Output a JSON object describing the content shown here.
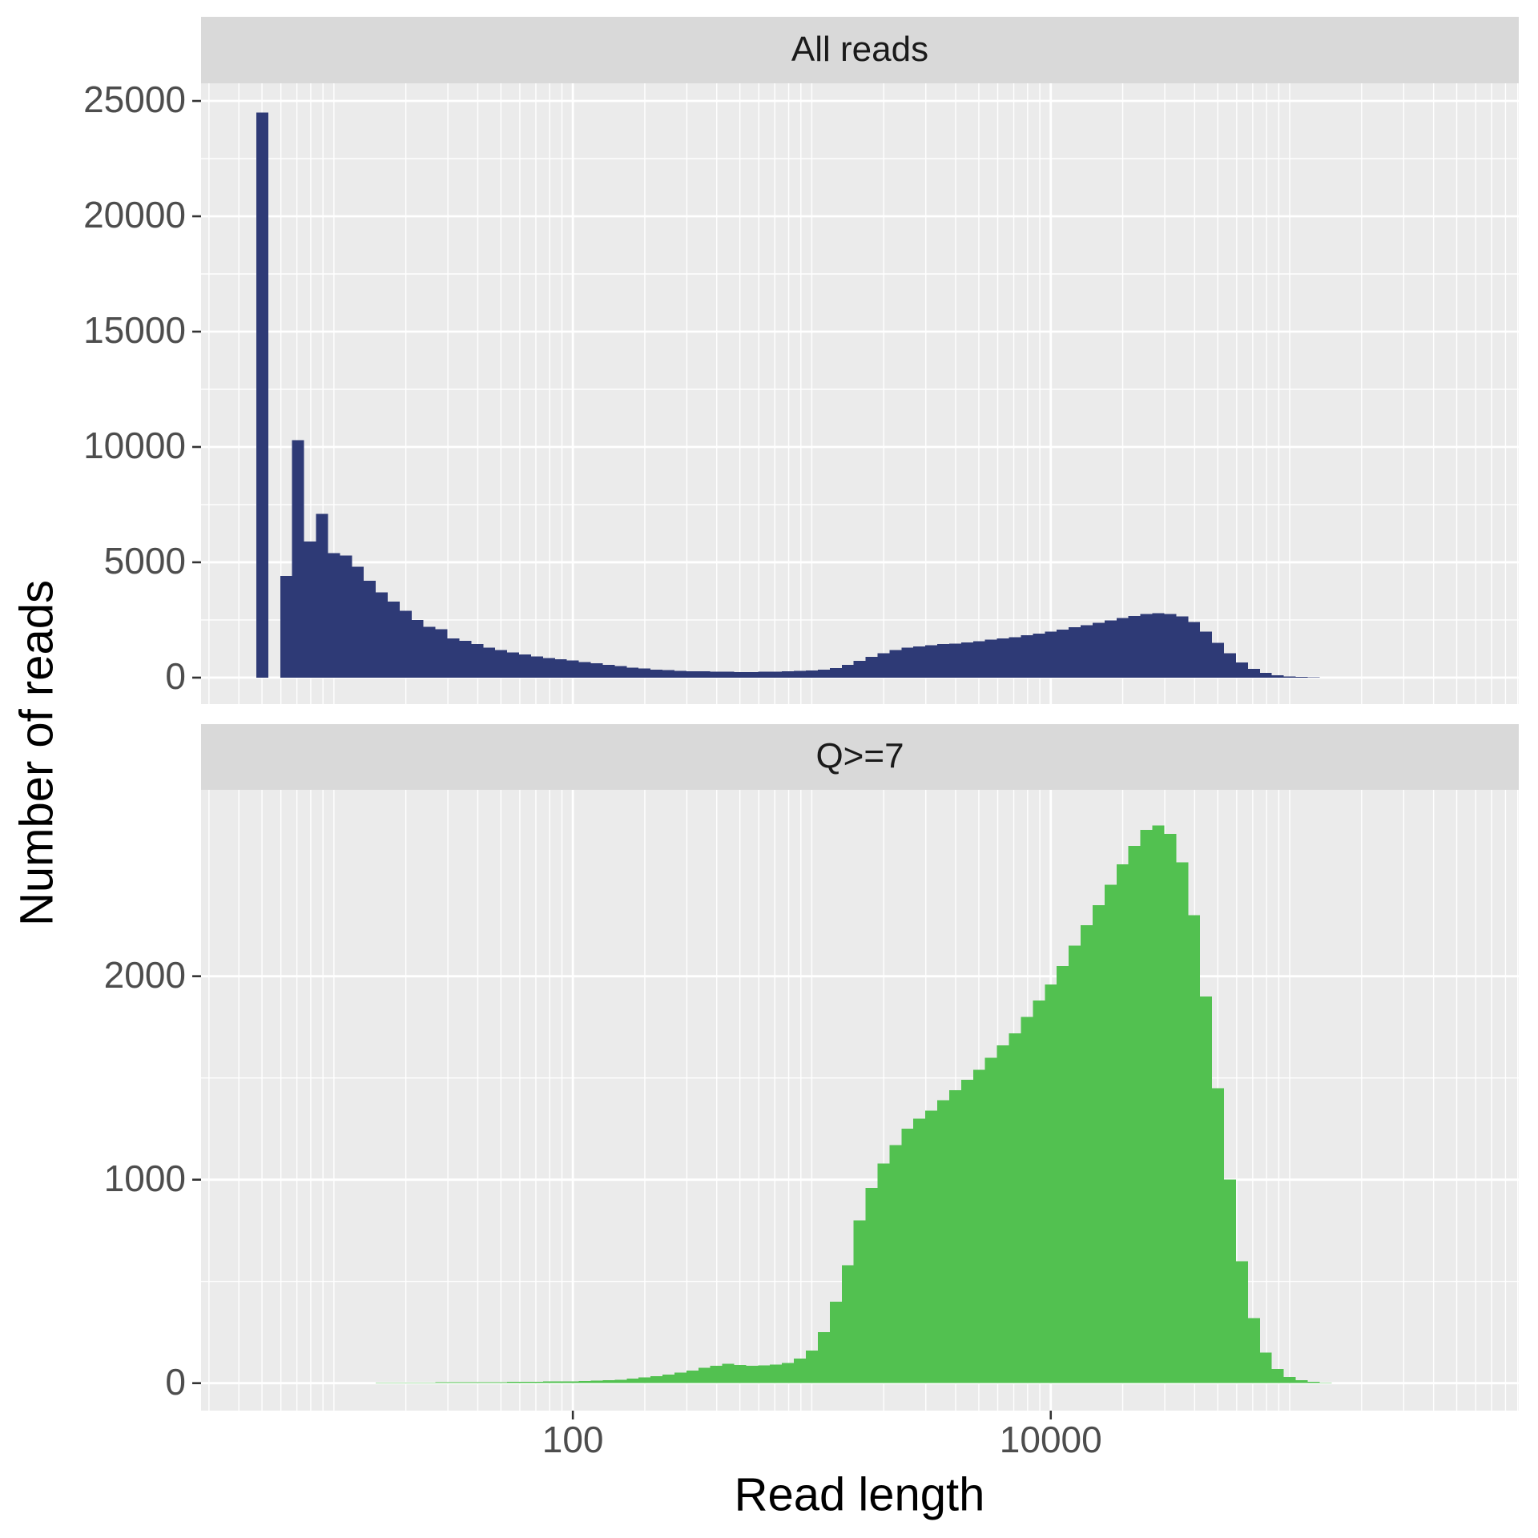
{
  "x_label": "Read length",
  "y_label": "Number of reads",
  "chart_data": [
    {
      "type": "histogram",
      "strip": "All reads",
      "log_x": true,
      "grid": true,
      "color": "#2e3a76",
      "bins": [
        4.73,
        5.31,
        5.96,
        6.68,
        7.5,
        8.41,
        9.44,
        10.59,
        11.89,
        13.34,
        14.96,
        16.79,
        18.84,
        21.13,
        23.71,
        26.61,
        29.85,
        33.5,
        37.58,
        42.17,
        47.32,
        53.09,
        59.57,
        66.83,
        74.99,
        84.14,
        94.41,
        105.9,
        118.9,
        133.4,
        149.6,
        167.9,
        188.4,
        211.3,
        237.1,
        266.1,
        298.5,
        335,
        375.8,
        421.7,
        473.2,
        530.9,
        595.7,
        668.3,
        749.9,
        841.4,
        944.1,
        1059,
        1189,
        1334,
        1496,
        1679,
        1884,
        2113,
        2371,
        2661,
        2985,
        3350,
        3758,
        4217,
        4732,
        5309,
        5957,
        6683,
        7499,
        8414,
        9441,
        10593,
        11885,
        13335,
        14962,
        16788,
        18836,
        21135,
        23714,
        26607,
        29854,
        33497,
        37584,
        42170,
        47315,
        53088,
        59566,
        66834,
        74989,
        84140,
        94406,
        105925,
        118850,
        133352,
        149624,
        167880,
        188365
      ],
      "values": [
        24500,
        0,
        4400,
        10300,
        5900,
        7100,
        5400,
        5300,
        4800,
        4200,
        3700,
        3300,
        2900,
        2500,
        2200,
        2100,
        1700,
        1600,
        1450,
        1300,
        1200,
        1100,
        1000,
        920,
        850,
        800,
        750,
        680,
        620,
        560,
        500,
        440,
        390,
        350,
        320,
        300,
        280,
        270,
        260,
        250,
        245,
        245,
        250,
        255,
        270,
        290,
        310,
        340,
        420,
        550,
        720,
        900,
        1050,
        1200,
        1300,
        1350,
        1400,
        1450,
        1480,
        1520,
        1580,
        1650,
        1700,
        1760,
        1830,
        1900,
        2000,
        2080,
        2180,
        2280,
        2380,
        2480,
        2580,
        2680,
        2760,
        2800,
        2760,
        2650,
        2420,
        2000,
        1500,
        1050,
        650,
        380,
        200,
        100,
        50,
        25,
        10,
        4,
        1,
        0
      ],
      "xlim": [
        2.78,
        909000
      ],
      "xticks": [
        100,
        10000
      ],
      "ylim": [
        -1148,
        25765
      ],
      "yticks": [
        0,
        5000,
        10000,
        15000,
        20000,
        25000
      ]
    },
    {
      "type": "histogram",
      "strip": "Q>=7",
      "log_x": true,
      "grid": true,
      "color": "#52c150",
      "bins": [
        4.73,
        5.31,
        5.96,
        6.68,
        7.5,
        8.41,
        9.44,
        10.59,
        11.89,
        13.34,
        14.96,
        16.79,
        18.84,
        21.13,
        23.71,
        26.61,
        29.85,
        33.5,
        37.58,
        42.17,
        47.32,
        53.09,
        59.57,
        66.83,
        74.99,
        84.14,
        94.41,
        105.9,
        118.9,
        133.4,
        149.6,
        167.9,
        188.4,
        211.3,
        237.1,
        266.1,
        298.5,
        335,
        375.8,
        421.7,
        473.2,
        530.9,
        595.7,
        668.3,
        749.9,
        841.4,
        944.1,
        1059,
        1189,
        1334,
        1496,
        1679,
        1884,
        2113,
        2371,
        2661,
        2985,
        3350,
        3758,
        4217,
        4732,
        5309,
        5957,
        6683,
        7499,
        8414,
        9441,
        10593,
        11885,
        13335,
        14962,
        16788,
        18836,
        21135,
        23714,
        26607,
        29854,
        33497,
        37584,
        42170,
        47315,
        53088,
        59566,
        66834,
        74989,
        84140,
        94406,
        105925,
        118850,
        133352,
        149624,
        167880,
        188365
      ],
      "values": [
        0,
        0,
        0,
        0,
        0,
        0,
        0,
        0,
        0,
        0,
        2,
        2,
        3,
        3,
        3,
        4,
        4,
        4,
        5,
        5,
        5,
        6,
        6,
        7,
        8,
        8,
        9,
        10,
        12,
        14,
        17,
        22,
        28,
        35,
        42,
        52,
        62,
        75,
        85,
        95,
        90,
        85,
        88,
        92,
        100,
        120,
        160,
        250,
        400,
        580,
        800,
        960,
        1080,
        1170,
        1250,
        1300,
        1340,
        1390,
        1440,
        1490,
        1540,
        1600,
        1660,
        1720,
        1800,
        1880,
        1960,
        2050,
        2150,
        2250,
        2350,
        2450,
        2550,
        2640,
        2720,
        2740,
        2700,
        2560,
        2300,
        1900,
        1450,
        1000,
        600,
        320,
        150,
        70,
        30,
        15,
        6,
        3,
        1,
        0
      ],
      "xlim": [
        2.78,
        909000
      ],
      "xticks": [
        100,
        10000
      ],
      "ylim": [
        -135,
        2916
      ],
      "yticks": [
        0,
        1000,
        2000
      ]
    }
  ]
}
